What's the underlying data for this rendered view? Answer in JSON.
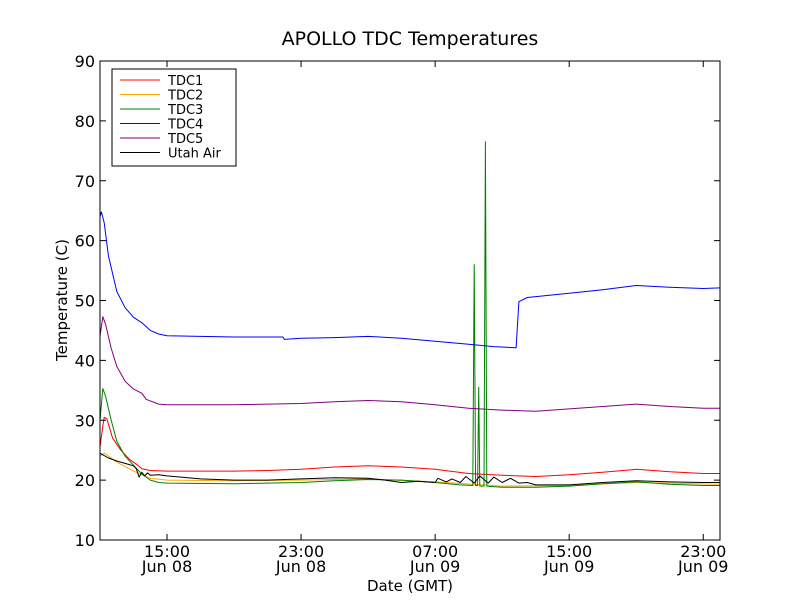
{
  "chart_data": {
    "type": "line",
    "title": "APOLLO TDC Temperatures",
    "xlabel": "Date (GMT)",
    "ylabel": "Temperature (C)",
    "xlim": [
      "Jun 08 11:00",
      "Jun 10 00:00"
    ],
    "ylim": [
      10,
      90
    ],
    "yticks": [
      10,
      20,
      30,
      40,
      50,
      60,
      70,
      80,
      90
    ],
    "xticks": [
      {
        "time": "15:00",
        "date": "Jun 08",
        "at": "Jun 08 15:00"
      },
      {
        "time": "23:00",
        "date": "Jun 08",
        "at": "Jun 08 23:00"
      },
      {
        "time": "07:00",
        "date": "Jun 09",
        "at": "Jun 09 07:00"
      },
      {
        "time": "15:00",
        "date": "Jun 09",
        "at": "Jun 09 15:00"
      },
      {
        "time": "23:00",
        "date": "Jun 09",
        "at": "Jun 09 23:00"
      }
    ],
    "grid": false,
    "legend_position": "top-left",
    "series": [
      {
        "name": "TDC1",
        "color": "#ff0000",
        "points": [
          [
            "Jun 08 11:00",
            25.5
          ],
          [
            "Jun 08 11:10",
            29
          ],
          [
            "Jun 08 11:15",
            30.5
          ],
          [
            "Jun 08 11:25",
            30.2
          ],
          [
            "Jun 08 11:45",
            27
          ],
          [
            "Jun 08 12:15",
            25
          ],
          [
            "Jun 08 12:45",
            23.5
          ],
          [
            "Jun 08 13:15",
            22.5
          ],
          [
            "Jun 08 13:30",
            21.9
          ],
          [
            "Jun 08 14:00",
            21.6
          ],
          [
            "Jun 08 15:00",
            21.5
          ],
          [
            "Jun 08 17:00",
            21.5
          ],
          [
            "Jun 08 19:00",
            21.5
          ],
          [
            "Jun 08 21:00",
            21.6
          ],
          [
            "Jun 08 23:00",
            21.8
          ],
          [
            "Jun 09 01:00",
            22.2
          ],
          [
            "Jun 09 03:00",
            22.4
          ],
          [
            "Jun 09 05:00",
            22.2
          ],
          [
            "Jun 09 07:00",
            21.8
          ],
          [
            "Jun 09 09:00",
            21.1
          ],
          [
            "Jun 09 11:00",
            20.8
          ],
          [
            "Jun 09 13:00",
            20.6
          ],
          [
            "Jun 09 15:00",
            20.9
          ],
          [
            "Jun 09 17:00",
            21.3
          ],
          [
            "Jun 09 19:00",
            21.8
          ],
          [
            "Jun 09 21:00",
            21.4
          ],
          [
            "Jun 09 23:00",
            21.1
          ],
          [
            "Jun 10 00:00",
            21.1
          ]
        ]
      },
      {
        "name": "TDC2",
        "color": "#ffaa00",
        "points": [
          [
            "Jun 08 11:00",
            24
          ],
          [
            "Jun 08 11:15",
            24.5
          ],
          [
            "Jun 08 12:00",
            23
          ],
          [
            "Jun 08 13:00",
            21.5
          ],
          [
            "Jun 08 14:00",
            20.3
          ],
          [
            "Jun 08 15:00",
            20
          ],
          [
            "Jun 08 19:00",
            19.9
          ],
          [
            "Jun 08 23:00",
            20
          ],
          [
            "Jun 09 03:00",
            20.2
          ],
          [
            "Jun 09 07:00",
            19.7
          ],
          [
            "Jun 09 11:00",
            19.0
          ],
          [
            "Jun 09 15:00",
            19.1
          ],
          [
            "Jun 09 19:00",
            19.6
          ],
          [
            "Jun 10 00:00",
            19.3
          ]
        ]
      },
      {
        "name": "TDC3",
        "color": "#008000",
        "points": [
          [
            "Jun 08 11:00",
            30
          ],
          [
            "Jun 08 11:10",
            35.3
          ],
          [
            "Jun 08 11:20",
            34
          ],
          [
            "Jun 08 11:40",
            30
          ],
          [
            "Jun 08 12:00",
            26.5
          ],
          [
            "Jun 08 12:30",
            24
          ],
          [
            "Jun 08 13:00",
            22.5
          ],
          [
            "Jun 08 13:30",
            21
          ],
          [
            "Jun 08 14:00",
            20
          ],
          [
            "Jun 08 14:30",
            19.6
          ],
          [
            "Jun 08 15:00",
            19.5
          ],
          [
            "Jun 08 19:00",
            19.4
          ],
          [
            "Jun 08 23:00",
            19.6
          ],
          [
            "Jun 09 01:00",
            19.9
          ],
          [
            "Jun 09 03:00",
            20.1
          ],
          [
            "Jun 09 05:00",
            20
          ],
          [
            "Jun 09 07:00",
            19.6
          ],
          [
            "Jun 09 08:30",
            19.2
          ],
          [
            "Jun 09 09:15",
            19.1
          ],
          [
            "Jun 09 09:20",
            56
          ],
          [
            "Jun 09 09:25",
            19.1
          ],
          [
            "Jun 09 09:32",
            19.1
          ],
          [
            "Jun 09 09:36",
            35.5
          ],
          [
            "Jun 09 09:40",
            19
          ],
          [
            "Jun 09 09:55",
            19
          ],
          [
            "Jun 09 10:00",
            76.5
          ],
          [
            "Jun 09 10:05",
            19
          ],
          [
            "Jun 09 11:00",
            18.8
          ],
          [
            "Jun 09 13:00",
            18.8
          ],
          [
            "Jun 09 15:00",
            19.0
          ],
          [
            "Jun 09 17:00",
            19.4
          ],
          [
            "Jun 09 19:00",
            19.7
          ],
          [
            "Jun 09 21:00",
            19.3
          ],
          [
            "Jun 09 23:00",
            19.1
          ],
          [
            "Jun 10 00:00",
            19.1
          ]
        ]
      },
      {
        "name": "TDC4",
        "color": "#0000ff",
        "points": [
          [
            "Jun 08 11:00",
            64
          ],
          [
            "Jun 08 11:05",
            64.8
          ],
          [
            "Jun 08 11:15",
            63
          ],
          [
            "Jun 08 11:30",
            57.5
          ],
          [
            "Jun 08 12:00",
            51.5
          ],
          [
            "Jun 08 12:30",
            48.8
          ],
          [
            "Jun 08 13:00",
            47.2
          ],
          [
            "Jun 08 13:30",
            46.3
          ],
          [
            "Jun 08 14:00",
            45
          ],
          [
            "Jun 08 14:30",
            44.4
          ],
          [
            "Jun 08 15:00",
            44.1
          ],
          [
            "Jun 08 17:00",
            44
          ],
          [
            "Jun 08 19:00",
            43.9
          ],
          [
            "Jun 08 21:00",
            43.9
          ],
          [
            "Jun 08 21:55",
            43.9
          ],
          [
            "Jun 08 22:00",
            43.5
          ],
          [
            "Jun 08 23:00",
            43.7
          ],
          [
            "Jun 09 01:00",
            43.8
          ],
          [
            "Jun 09 03:00",
            44
          ],
          [
            "Jun 09 05:00",
            43.7
          ],
          [
            "Jun 09 07:00",
            43.2
          ],
          [
            "Jun 09 09:00",
            42.7
          ],
          [
            "Jun 09 10:30",
            42.3
          ],
          [
            "Jun 09 11:50",
            42.1
          ],
          [
            "Jun 09 12:00",
            49.8
          ],
          [
            "Jun 09 12:30",
            50.5
          ],
          [
            "Jun 09 15:00",
            51.2
          ],
          [
            "Jun 09 17:00",
            51.8
          ],
          [
            "Jun 09 19:00",
            52.5
          ],
          [
            "Jun 09 21:00",
            52.2
          ],
          [
            "Jun 09 23:00",
            52.0
          ],
          [
            "Jun 10 00:00",
            52.1
          ]
        ]
      },
      {
        "name": "TDC5",
        "color": "#800080",
        "points": [
          [
            "Jun 08 11:00",
            44
          ],
          [
            "Jun 08 11:10",
            47.3
          ],
          [
            "Jun 08 11:20",
            46
          ],
          [
            "Jun 08 11:40",
            42
          ],
          [
            "Jun 08 12:00",
            39
          ],
          [
            "Jun 08 12:30",
            36.5
          ],
          [
            "Jun 08 13:00",
            35.2
          ],
          [
            "Jun 08 13:30",
            34.5
          ],
          [
            "Jun 08 13:45",
            33.5
          ],
          [
            "Jun 08 14:30",
            32.7
          ],
          [
            "Jun 08 15:00",
            32.6
          ],
          [
            "Jun 08 19:00",
            32.6
          ],
          [
            "Jun 08 23:00",
            32.8
          ],
          [
            "Jun 09 01:00",
            33.1
          ],
          [
            "Jun 09 03:00",
            33.3
          ],
          [
            "Jun 09 05:00",
            33.1
          ],
          [
            "Jun 09 07:00",
            32.6
          ],
          [
            "Jun 09 09:00",
            32.0
          ],
          [
            "Jun 09 11:00",
            31.7
          ],
          [
            "Jun 09 13:00",
            31.5
          ],
          [
            "Jun 09 15:00",
            31.9
          ],
          [
            "Jun 09 17:00",
            32.3
          ],
          [
            "Jun 09 19:00",
            32.7
          ],
          [
            "Jun 09 21:00",
            32.3
          ],
          [
            "Jun 09 23:00",
            32.0
          ],
          [
            "Jun 10 00:00",
            32.0
          ]
        ]
      },
      {
        "name": "Utah Air",
        "color": "#000000",
        "points": [
          [
            "Jun 08 11:00",
            24.5
          ],
          [
            "Jun 08 11:30",
            23.7
          ],
          [
            "Jun 08 12:00",
            23.2
          ],
          [
            "Jun 08 12:30",
            22.8
          ],
          [
            "Jun 08 13:00",
            22.4
          ],
          [
            "Jun 08 13:10",
            21.9
          ],
          [
            "Jun 08 13:20",
            20.5
          ],
          [
            "Jun 08 13:30",
            21.3
          ],
          [
            "Jun 08 13:40",
            20.7
          ],
          [
            "Jun 08 13:50",
            21.2
          ],
          [
            "Jun 08 14:00",
            20.8
          ],
          [
            "Jun 08 14:30",
            20.9
          ],
          [
            "Jun 08 15:00",
            20.7
          ],
          [
            "Jun 08 17:00",
            20.2
          ],
          [
            "Jun 08 19:00",
            20.0
          ],
          [
            "Jun 08 21:00",
            20.0
          ],
          [
            "Jun 08 23:00",
            20.2
          ],
          [
            "Jun 09 01:00",
            20.4
          ],
          [
            "Jun 09 03:00",
            20.3
          ],
          [
            "Jun 09 04:00",
            20.0
          ],
          [
            "Jun 09 05:00",
            19.6
          ],
          [
            "Jun 09 06:00",
            19.8
          ],
          [
            "Jun 09 07:00",
            19.6
          ],
          [
            "Jun 09 07:10",
            20.3
          ],
          [
            "Jun 09 07:40",
            19.7
          ],
          [
            "Jun 09 08:00",
            20.2
          ],
          [
            "Jun 09 08:30",
            19.6
          ],
          [
            "Jun 09 08:50",
            20.6
          ],
          [
            "Jun 09 09:20",
            19.5
          ],
          [
            "Jun 09 09:40",
            20.7
          ],
          [
            "Jun 09 10:10",
            19.5
          ],
          [
            "Jun 09 10:30",
            20.5
          ],
          [
            "Jun 09 11:00",
            19.6
          ],
          [
            "Jun 09 11:30",
            20.3
          ],
          [
            "Jun 09 12:00",
            19.5
          ],
          [
            "Jun 09 12:30",
            19.6
          ],
          [
            "Jun 09 13:00",
            19.2
          ],
          [
            "Jun 09 15:00",
            19.2
          ],
          [
            "Jun 09 17:00",
            19.6
          ],
          [
            "Jun 09 19:00",
            19.9
          ],
          [
            "Jun 09 21:00",
            19.7
          ],
          [
            "Jun 09 23:00",
            19.6
          ],
          [
            "Jun 10 00:00",
            19.6
          ]
        ]
      }
    ]
  }
}
